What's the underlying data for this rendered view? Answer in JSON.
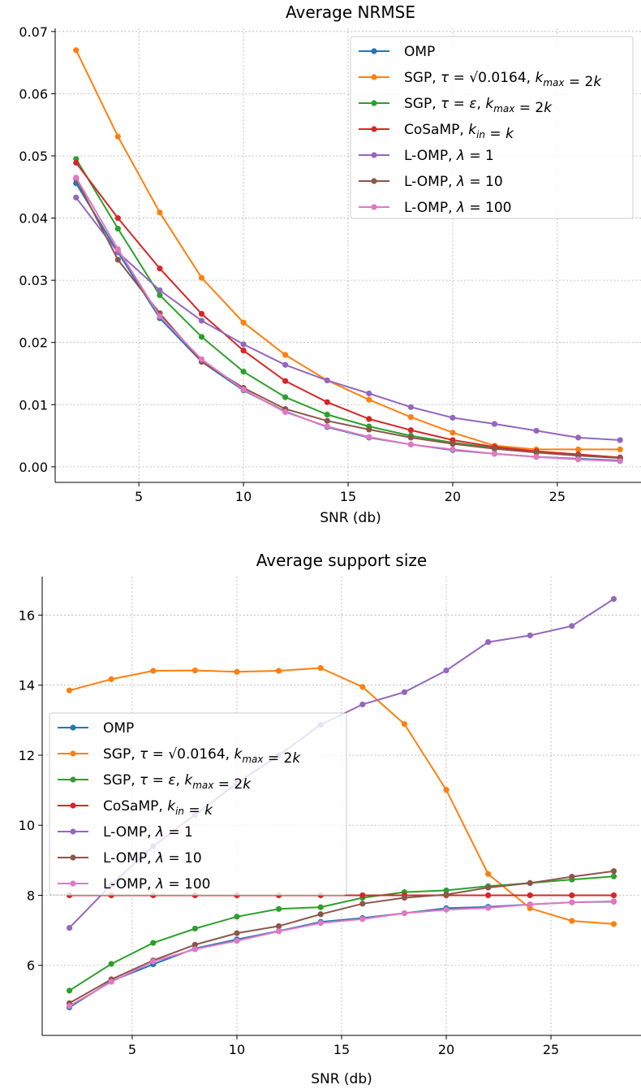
{
  "chart_data": [
    {
      "type": "line",
      "title": "Average NRMSE",
      "xlabel": "SNR (db)",
      "ylabel": "",
      "xlim": [
        1,
        29
      ],
      "ylim": [
        -0.0025,
        0.0705
      ],
      "xticks": [
        5,
        10,
        15,
        20,
        25
      ],
      "yticks": [
        0.0,
        0.01,
        0.02,
        0.03,
        0.04,
        0.05,
        0.06,
        0.07
      ],
      "ytick_decimals": 2,
      "grid": true,
      "legend_position": "top-right",
      "x": [
        2,
        4,
        6,
        8,
        10,
        12,
        14,
        16,
        18,
        20,
        22,
        24,
        26,
        28
      ],
      "series": [
        {
          "name": "OMP",
          "color": "#1f77b4",
          "values": [
            0.0456,
            0.0345,
            0.0239,
            0.0169,
            0.0123,
            0.0089,
            0.0064,
            0.0047,
            0.0036,
            0.0027,
            0.0021,
            0.0016,
            0.0013,
            0.001
          ]
        },
        {
          "name": "SGP, τ = √0.0164, k_max = 2k",
          "color": "#ff7f0e",
          "values": [
            0.067,
            0.0531,
            0.0409,
            0.0304,
            0.0232,
            0.018,
            0.0139,
            0.0108,
            0.008,
            0.0055,
            0.0034,
            0.0028,
            0.0028,
            0.0028
          ]
        },
        {
          "name": "SGP, τ = ε, k_max = 2k",
          "color": "#2ca02c",
          "values": [
            0.0495,
            0.0383,
            0.0276,
            0.0209,
            0.0153,
            0.0112,
            0.0084,
            0.0065,
            0.005,
            0.0039,
            0.003,
            0.0024,
            0.0019,
            0.0015
          ]
        },
        {
          "name": "CoSaMP, k_in = k",
          "color": "#d62728",
          "values": [
            0.0489,
            0.04,
            0.0319,
            0.0246,
            0.0187,
            0.0138,
            0.0104,
            0.0077,
            0.0059,
            0.0043,
            0.0032,
            0.0025,
            0.002,
            0.0015
          ]
        },
        {
          "name": "L-OMP, λ = 1",
          "color": "#9467bd",
          "values": [
            0.0433,
            0.0345,
            0.0284,
            0.0235,
            0.0197,
            0.0164,
            0.0139,
            0.0118,
            0.0096,
            0.0079,
            0.0069,
            0.0058,
            0.0047,
            0.0043
          ]
        },
        {
          "name": "L-OMP, λ = 10",
          "color": "#8c564b",
          "values": [
            0.0463,
            0.0333,
            0.0247,
            0.0169,
            0.0127,
            0.0093,
            0.0074,
            0.006,
            0.0047,
            0.0037,
            0.0029,
            0.0023,
            0.0018,
            0.0014
          ]
        },
        {
          "name": "L-OMP, λ = 100",
          "color": "#e377c2",
          "values": [
            0.0465,
            0.035,
            0.0242,
            0.0173,
            0.0124,
            0.0088,
            0.0065,
            0.0048,
            0.0036,
            0.0028,
            0.0021,
            0.0016,
            0.0012,
            0.0009
          ]
        }
      ]
    },
    {
      "type": "line",
      "title": "Average support size",
      "xlabel": "SNR (db)",
      "ylabel": "",
      "xlim": [
        0.7,
        29.3
      ],
      "ylim": [
        4.0,
        17.1
      ],
      "xticks": [
        5,
        10,
        15,
        20,
        25
      ],
      "yticks": [
        6,
        8,
        10,
        12,
        14,
        16
      ],
      "ytick_decimals": 0,
      "grid": true,
      "legend_position": "center-left",
      "x": [
        2,
        4,
        6,
        8,
        10,
        12,
        14,
        16,
        18,
        20,
        22,
        24,
        26,
        28
      ],
      "series": [
        {
          "name": "OMP",
          "color": "#1f77b4",
          "values": [
            4.8,
            5.55,
            6.03,
            6.48,
            6.74,
            6.98,
            7.24,
            7.35,
            7.49,
            7.63,
            7.67,
            7.74,
            7.8,
            7.82
          ]
        },
        {
          "name": "SGP, τ = √0.0164, k_max = 2k",
          "color": "#ff7f0e",
          "values": [
            13.85,
            14.17,
            14.41,
            14.42,
            14.38,
            14.41,
            14.49,
            13.95,
            12.89,
            11.01,
            8.61,
            7.63,
            7.27,
            7.18
          ]
        },
        {
          "name": "SGP, τ = ε, k_max = 2k",
          "color": "#2ca02c",
          "values": [
            5.28,
            6.04,
            6.64,
            7.05,
            7.39,
            7.61,
            7.66,
            7.93,
            8.09,
            8.14,
            8.26,
            8.35,
            8.45,
            8.54
          ]
        },
        {
          "name": "CoSaMP, k_in = k",
          "color": "#d62728",
          "values": [
            8,
            8,
            8,
            8,
            8,
            8,
            8,
            8,
            8,
            8,
            8,
            8,
            8,
            8
          ]
        },
        {
          "name": "L-OMP, λ = 1",
          "color": "#9467bd",
          "values": [
            7.07,
            8.3,
            9.4,
            10.3,
            11.2,
            12.0,
            12.87,
            13.45,
            13.8,
            14.42,
            15.23,
            15.42,
            15.69,
            16.46
          ]
        },
        {
          "name": "L-OMP, λ = 10",
          "color": "#8c564b",
          "values": [
            4.92,
            5.6,
            6.14,
            6.59,
            6.92,
            7.12,
            7.46,
            7.76,
            7.93,
            8.02,
            8.22,
            8.35,
            8.53,
            8.69
          ]
        },
        {
          "name": "L-OMP, λ = 100",
          "color": "#e377c2",
          "values": [
            4.84,
            5.53,
            6.11,
            6.46,
            6.7,
            6.97,
            7.21,
            7.32,
            7.49,
            7.59,
            7.64,
            7.74,
            7.8,
            7.83
          ]
        }
      ]
    }
  ]
}
